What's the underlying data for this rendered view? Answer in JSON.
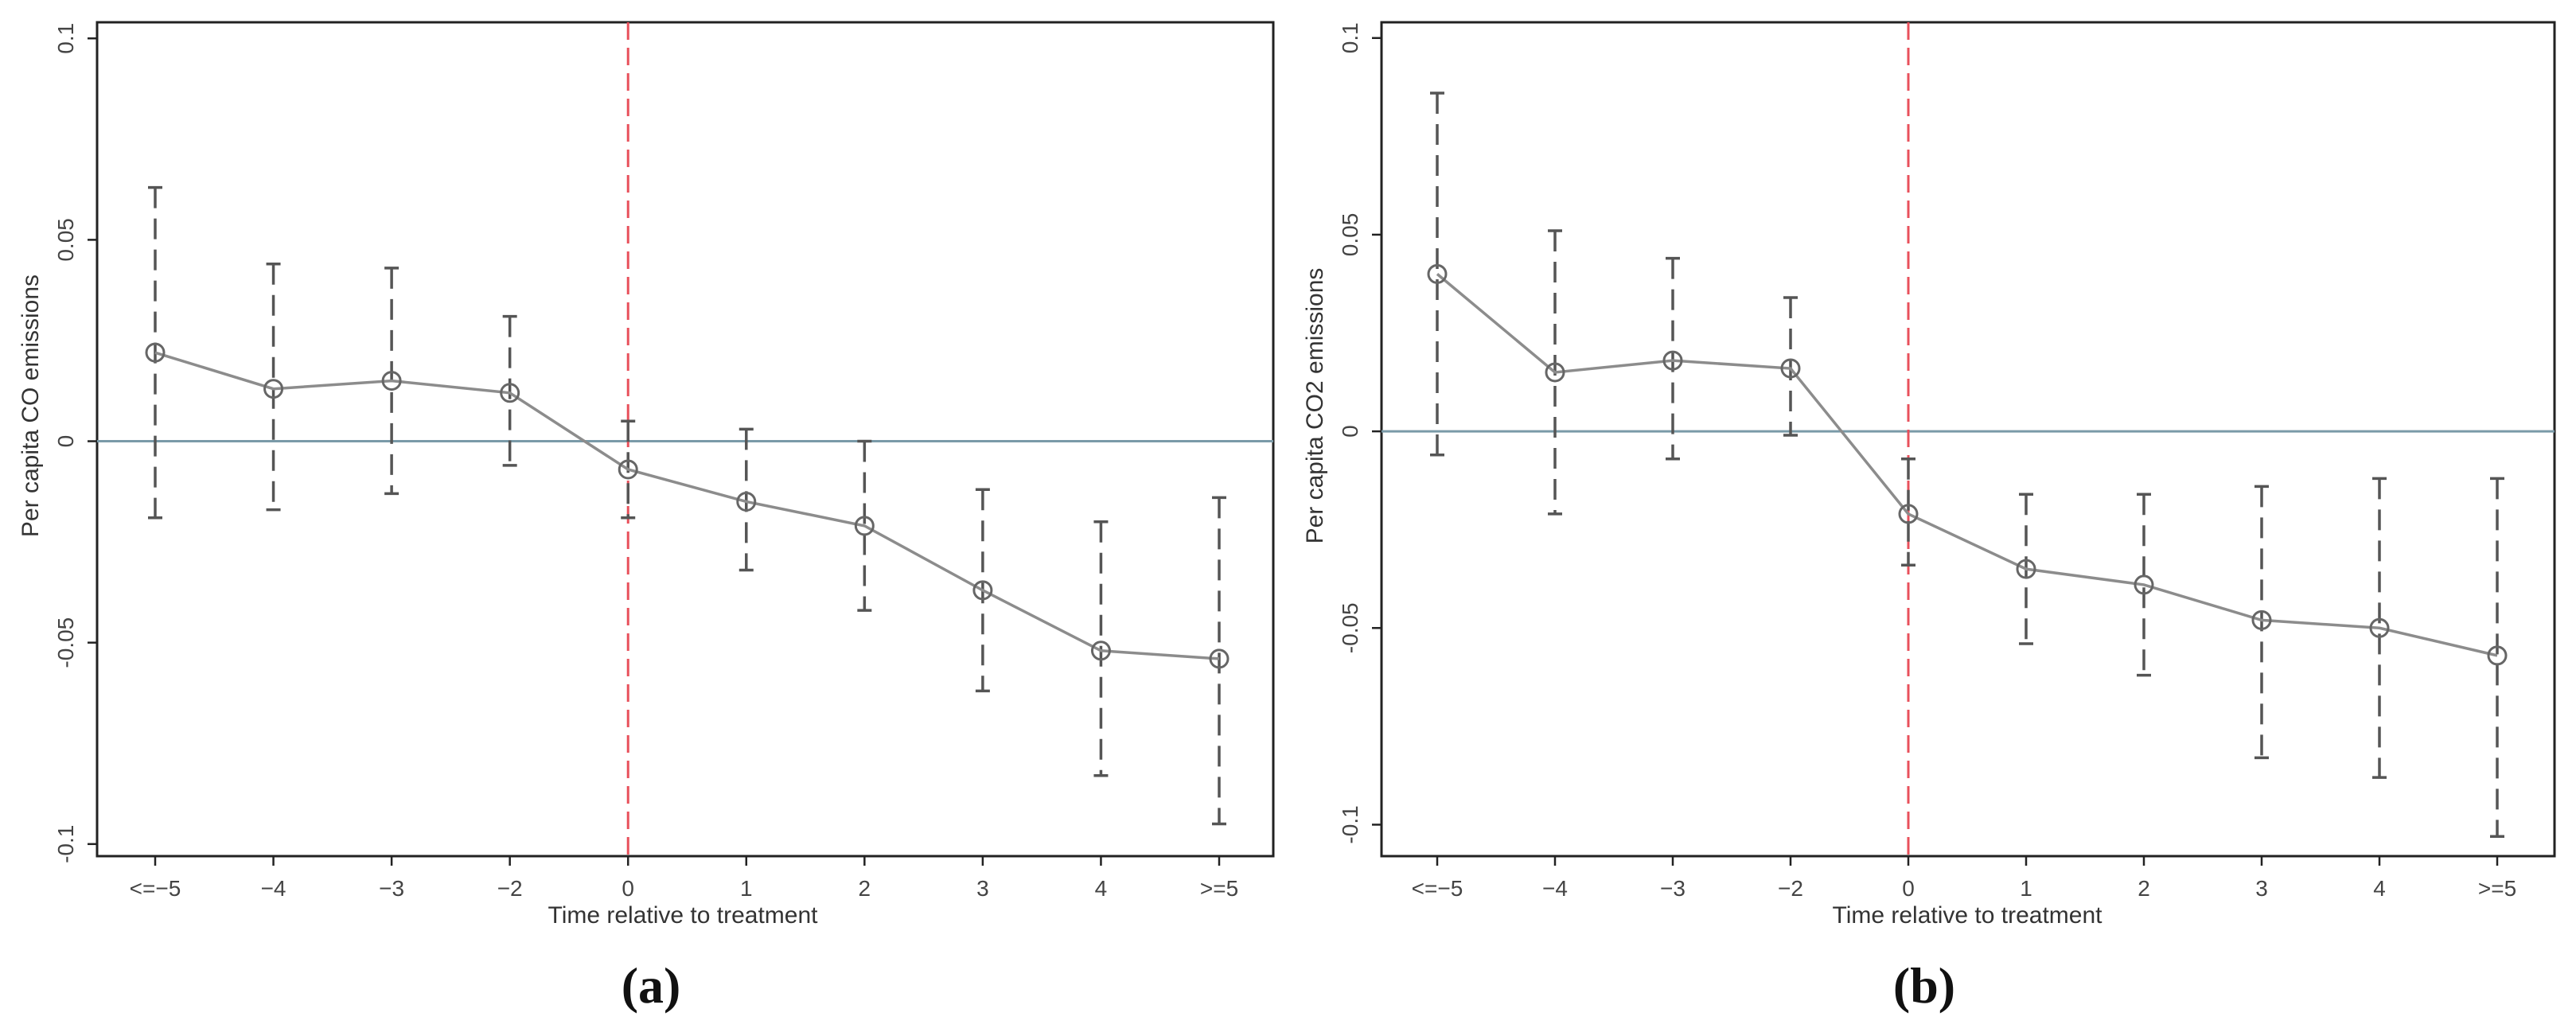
{
  "chart_data": [
    {
      "type": "line",
      "panel_label": "(a)",
      "xlabel": "Time relative to treatment",
      "ylabel": "Per capita CO emissions",
      "categories": [
        "<=−5",
        "−4",
        "−3",
        "−2",
        "0",
        "1",
        "2",
        "3",
        "4",
        ">=5"
      ],
      "series": [
        {
          "values": [
            0.022,
            0.013,
            0.015,
            0.012,
            -0.007,
            -0.015,
            -0.021,
            -0.037,
            -0.052,
            -0.054
          ],
          "ci_lower": [
            -0.019,
            -0.017,
            -0.013,
            -0.006,
            -0.019,
            -0.032,
            -0.042,
            -0.062,
            -0.083,
            -0.095
          ],
          "ci_upper": [
            0.063,
            0.044,
            0.043,
            0.031,
            0.005,
            0.003,
            0.0,
            -0.012,
            -0.02,
            -0.014
          ]
        }
      ],
      "yticks": [
        -0.1,
        -0.05,
        0,
        0.05,
        0.1
      ],
      "ytick_labels": [
        "-0.1",
        "-0.05",
        "0",
        "0.05",
        "0.1"
      ],
      "ylim": [
        -0.103,
        0.104
      ],
      "reference_vline_category": "0",
      "reference_hline": 0,
      "grid": false,
      "colors": {
        "line": "#8c8c8c",
        "ci": "#555555",
        "vline": "#e8505b",
        "hline": "#7a9aa8"
      }
    },
    {
      "type": "line",
      "panel_label": "(b)",
      "xlabel": "Time relative to treatment",
      "ylabel": "Per capita CO2 emissions",
      "categories": [
        "<=−5",
        "−4",
        "−3",
        "−2",
        "0",
        "1",
        "2",
        "3",
        "4",
        ">=5"
      ],
      "series": [
        {
          "values": [
            0.04,
            0.015,
            0.018,
            0.016,
            -0.021,
            -0.035,
            -0.039,
            -0.048,
            -0.05,
            -0.057
          ],
          "ci_lower": [
            -0.006,
            -0.021,
            -0.007,
            -0.001,
            -0.034,
            -0.054,
            -0.062,
            -0.083,
            -0.088,
            -0.103
          ],
          "ci_upper": [
            0.086,
            0.051,
            0.044,
            0.034,
            -0.007,
            -0.016,
            -0.016,
            -0.014,
            -0.012,
            -0.012
          ]
        }
      ],
      "yticks": [
        -0.1,
        -0.05,
        0,
        0.05,
        0.1
      ],
      "ytick_labels": [
        "-0.1",
        "-0.05",
        "0",
        "0.05",
        "0.1"
      ],
      "ylim": [
        -0.108,
        0.104
      ],
      "reference_vline_category": "0",
      "reference_hline": 0,
      "grid": false,
      "colors": {
        "line": "#8c8c8c",
        "ci": "#555555",
        "vline": "#e8505b",
        "hline": "#7a9aa8"
      }
    }
  ]
}
